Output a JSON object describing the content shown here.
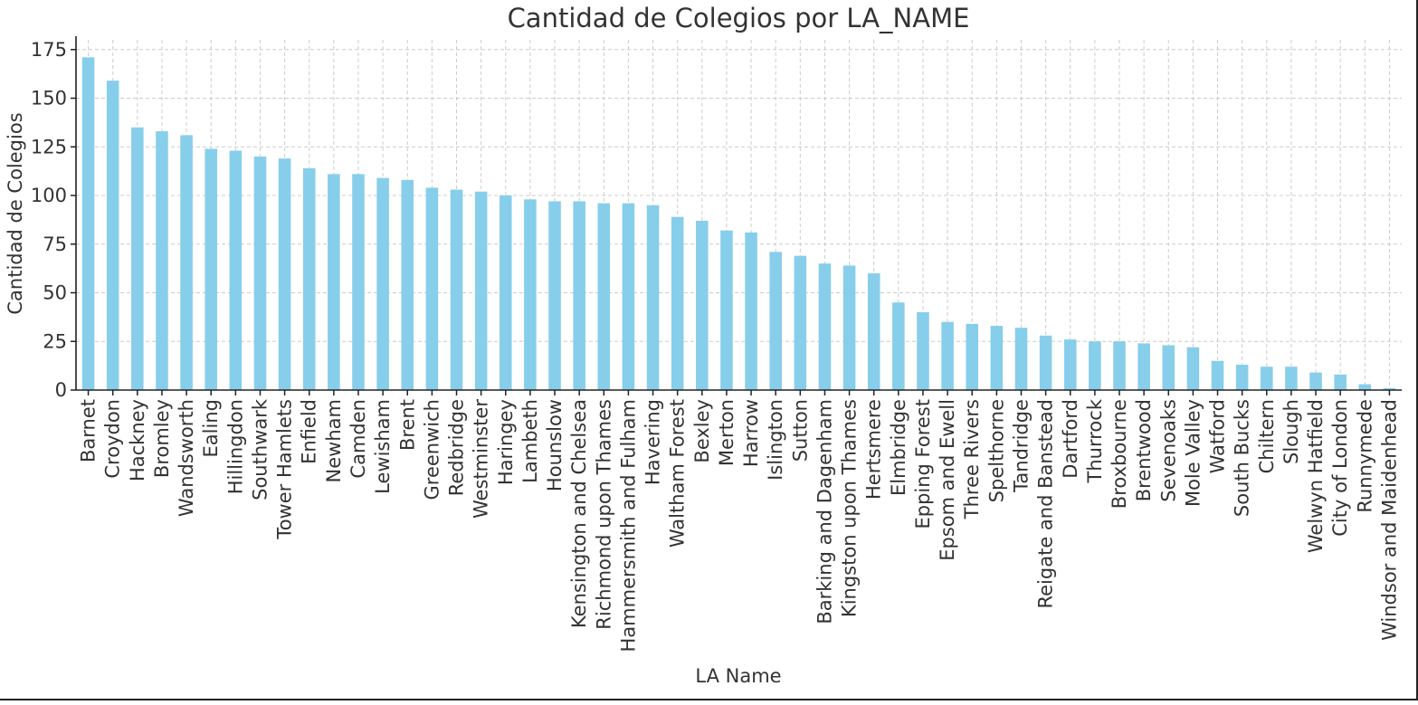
{
  "chart_data": {
    "type": "bar",
    "title": "Cantidad de Colegios por LA_NAME",
    "xlabel": "LA Name",
    "ylabel": "Cantidad de Colegios",
    "ylim": [
      0,
      180
    ],
    "yticks": [
      0,
      25,
      50,
      75,
      100,
      125,
      150,
      175
    ],
    "grid": true,
    "bar_color": "#87ceeb",
    "categories": [
      "Barnet",
      "Croydon",
      "Hackney",
      "Bromley",
      "Wandsworth",
      "Ealing",
      "Hillingdon",
      "Southwark",
      "Tower Hamlets",
      "Enfield",
      "Newham",
      "Camden",
      "Lewisham",
      "Brent",
      "Greenwich",
      "Redbridge",
      "Westminster",
      "Haringey",
      "Lambeth",
      "Hounslow",
      "Kensington and Chelsea",
      "Richmond upon Thames",
      "Hammersmith and Fulham",
      "Havering",
      "Waltham Forest",
      "Bexley",
      "Merton",
      "Harrow",
      "Islington",
      "Sutton",
      "Barking and Dagenham",
      "Kingston upon Thames",
      "Hertsmere",
      "Elmbridge",
      "Epping Forest",
      "Epsom and Ewell",
      "Three Rivers",
      "Spelthorne",
      "Tandridge",
      "Reigate and Banstead",
      "Dartford",
      "Thurrock",
      "Broxbourne",
      "Brentwood",
      "Sevenoaks",
      "Mole Valley",
      "Watford",
      "South Bucks",
      "Chiltern",
      "Slough",
      "Welwyn Hatfield",
      "City of London",
      "Runnymede",
      "Windsor and Maidenhead"
    ],
    "values": [
      171,
      159,
      135,
      133,
      131,
      124,
      123,
      120,
      119,
      114,
      111,
      111,
      109,
      108,
      104,
      103,
      102,
      100,
      98,
      97,
      97,
      96,
      96,
      95,
      89,
      87,
      82,
      81,
      71,
      69,
      65,
      64,
      60,
      45,
      40,
      35,
      34,
      33,
      32,
      28,
      26,
      25,
      25,
      24,
      23,
      22,
      15,
      13,
      12,
      12,
      9,
      8,
      3,
      1
    ]
  }
}
